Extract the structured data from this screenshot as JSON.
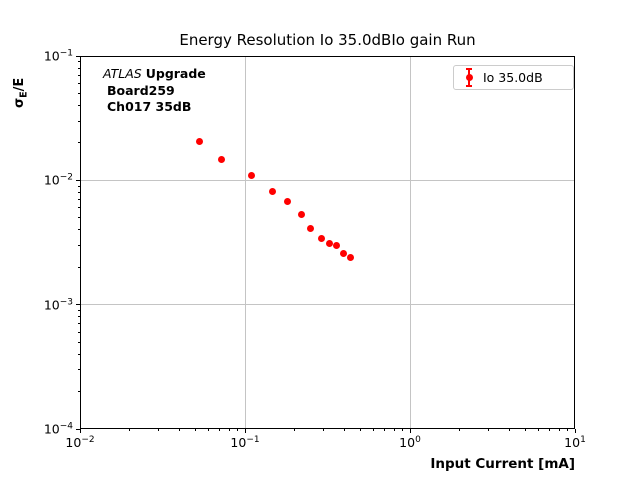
{
  "chart_data": {
    "type": "scatter",
    "title": "Energy Resolution Io 35.0dBIo gain Run",
    "xlabel": "Input Current [mA]",
    "ylabel": "σE/E",
    "ylabel_parts": {
      "symbol": "σ",
      "sub": "E",
      "rest": "/E"
    },
    "xscale": "log",
    "yscale": "log",
    "xlim": [
      0.01,
      10
    ],
    "ylim": [
      0.0001,
      0.1
    ],
    "x_tick_exponents": [
      -2,
      -1,
      0,
      1
    ],
    "y_tick_exponents": [
      -1,
      -2,
      -3,
      -4
    ],
    "grid": "major",
    "legend_position": "upper right",
    "series": [
      {
        "name": "Io 35.0dB",
        "marker": "filled-circle-with-errorbars",
        "color": "#ff0000",
        "x": [
          0.053,
          0.072,
          0.109,
          0.146,
          0.18,
          0.219,
          0.251,
          0.289,
          0.323,
          0.361,
          0.393,
          0.433
        ],
        "y": [
          0.0207,
          0.0146,
          0.011,
          0.0081,
          0.0068,
          0.0053,
          0.0041,
          0.0034,
          0.0031,
          0.003,
          0.0026,
          0.0024
        ]
      }
    ]
  },
  "annotation": {
    "line1_italic": "ATLAS",
    "line1_bold": "Upgrade",
    "line2": "Board259",
    "line3": "Ch017 35dB"
  },
  "legend": {
    "entries": [
      {
        "label": "Io 35.0dB",
        "marker": "errorbar-point",
        "color": "#ff0000"
      }
    ]
  },
  "colors": {
    "marker": "#ff0000",
    "grid": "#c4c4c4",
    "axis": "#000000",
    "text": "#000000",
    "legend_border": "#cccccc",
    "background": "#ffffff"
  }
}
